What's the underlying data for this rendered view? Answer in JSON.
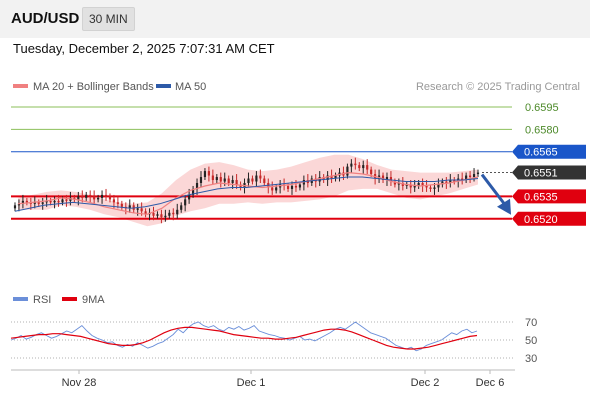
{
  "header": {
    "symbol": "AUD/USD",
    "timeframe": "30 MIN"
  },
  "timestamp": "Tuesday, December 2, 2025 7:07:31 AM CET",
  "legend": {
    "ma20_bb": "MA 20 + Bollinger Bands",
    "ma50": "MA 50",
    "rsi": "RSI",
    "rsi_ma": "9MA"
  },
  "credit": "Research © 2025 Trading Central",
  "colors": {
    "bullish_candle": "#222222",
    "bearish_candle": "#c62828",
    "ma20": "#f08080",
    "bollinger_fill": "#f9c9c9",
    "ma50": "#2d5aa8",
    "resistance_green": "#8bbf5a",
    "resistance_blue": "#1a56c9",
    "support_red": "#e0000f",
    "last_price": "#333333",
    "forecast_arrow": "#2d5aa8",
    "rsi_line": "#6b8fd9",
    "rsi_ma_line": "#e0000f"
  },
  "chart_data": [
    {
      "type": "candlestick",
      "title": "AUD/USD 30 MIN",
      "x_tick_labels": [
        "Nov 28",
        "Dec 1",
        "Dec 2",
        "Dec 6"
      ],
      "ylim": [
        0.6515,
        0.6605
      ],
      "price_levels": [
        {
          "value": 0.6595,
          "label": "0.6595",
          "kind": "resistance"
        },
        {
          "value": 0.658,
          "label": "0.6580",
          "kind": "resistance"
        },
        {
          "value": 0.6565,
          "label": "0.6565",
          "kind": "pivot"
        },
        {
          "value": 0.6551,
          "label": "0.6551",
          "kind": "last"
        },
        {
          "value": 0.6535,
          "label": "0.6535",
          "kind": "support"
        },
        {
          "value": 0.652,
          "label": "0.6520",
          "kind": "support"
        }
      ],
      "close_series": [
        0.6529,
        0.653,
        0.6532,
        0.6531,
        0.653,
        0.6531,
        0.653,
        0.6531,
        0.6532,
        0.6531,
        0.6532,
        0.6531,
        0.6533,
        0.6532,
        0.6534,
        0.6533,
        0.6535,
        0.6534,
        0.6536,
        0.6535,
        0.6533,
        0.6534,
        0.6536,
        0.6535,
        0.6533,
        0.6531,
        0.653,
        0.6528,
        0.6527,
        0.6529,
        0.6526,
        0.6527,
        0.6525,
        0.6523,
        0.6524,
        0.6522,
        0.6523,
        0.6521,
        0.6522,
        0.6524,
        0.6523,
        0.6526,
        0.6529,
        0.6533,
        0.6536,
        0.654,
        0.6544,
        0.6548,
        0.6552,
        0.6549,
        0.6546,
        0.6548,
        0.6545,
        0.6547,
        0.6544,
        0.6546,
        0.6543,
        0.6541,
        0.6544,
        0.6547,
        0.6545,
        0.6549,
        0.6547,
        0.6544,
        0.6541,
        0.6539,
        0.6541,
        0.6543,
        0.6542,
        0.654,
        0.6542,
        0.6541,
        0.6543,
        0.6546,
        0.6544,
        0.6547,
        0.6545,
        0.6548,
        0.6546,
        0.6549,
        0.6547,
        0.6549,
        0.6551,
        0.6549,
        0.6555,
        0.6557,
        0.6556,
        0.6554,
        0.6556,
        0.6553,
        0.655,
        0.6547,
        0.6549,
        0.6546,
        0.6548,
        0.6545,
        0.6543,
        0.6544,
        0.6542,
        0.6543,
        0.6541,
        0.6542,
        0.6544,
        0.6542,
        0.6541,
        0.654,
        0.6541,
        0.6543,
        0.6545,
        0.6544,
        0.6546,
        0.6545,
        0.6547,
        0.6546,
        0.6549,
        0.6548,
        0.655,
        0.6551
      ],
      "ma20": [
        0.653,
        0.6531,
        0.6532,
        0.6534,
        0.6533,
        0.6531,
        0.6528,
        0.6526,
        0.6524,
        0.6523,
        0.6527,
        0.6534,
        0.6539,
        0.6542,
        0.6544,
        0.6543,
        0.6542,
        0.6541,
        0.6542,
        0.6543,
        0.6545,
        0.6547,
        0.6549,
        0.6551,
        0.655,
        0.6548,
        0.6545,
        0.6543,
        0.6542,
        0.6543,
        0.6544,
        0.6546,
        0.6548
      ],
      "ma50": [
        0.6525,
        0.6527,
        0.6529,
        0.653,
        0.6531,
        0.653,
        0.6529,
        0.6528,
        0.6527,
        0.6528,
        0.653,
        0.6533,
        0.6536,
        0.6538,
        0.654,
        0.6541,
        0.6541,
        0.6542,
        0.6543,
        0.6544,
        0.6545,
        0.6546,
        0.6547,
        0.6548,
        0.6548,
        0.6547,
        0.6546,
        0.6545,
        0.6545,
        0.6545,
        0.6546,
        0.6546,
        0.6547
      ],
      "bollinger_upper": [
        0.6534,
        0.6536,
        0.6538,
        0.6539,
        0.6538,
        0.6536,
        0.6533,
        0.6531,
        0.653,
        0.6531,
        0.6537,
        0.6546,
        0.6553,
        0.6557,
        0.6558,
        0.6556,
        0.6553,
        0.6552,
        0.6553,
        0.6555,
        0.6558,
        0.6561,
        0.6563,
        0.6563,
        0.656,
        0.6556,
        0.6553,
        0.6552,
        0.6551,
        0.6551,
        0.6551,
        0.6552,
        0.6553
      ],
      "bollinger_lower": [
        0.6526,
        0.6526,
        0.6526,
        0.6529,
        0.6528,
        0.6526,
        0.6523,
        0.6521,
        0.6518,
        0.6515,
        0.6517,
        0.6522,
        0.6525,
        0.6527,
        0.653,
        0.653,
        0.6531,
        0.653,
        0.6531,
        0.6531,
        0.6532,
        0.6533,
        0.6535,
        0.6539,
        0.654,
        0.654,
        0.6537,
        0.6534,
        0.6533,
        0.6535,
        0.6537,
        0.654,
        0.6543
      ],
      "forecast": {
        "from": 0.6551,
        "to": 0.652,
        "direction": "down"
      }
    },
    {
      "type": "line",
      "title": "RSI",
      "yticks": [
        30,
        50,
        70
      ],
      "ylim": [
        20,
        80
      ],
      "series": [
        {
          "name": "RSI",
          "values": [
            50,
            52,
            55,
            51,
            53,
            56,
            58,
            55,
            52,
            54,
            57,
            60,
            58,
            62,
            66,
            60,
            55,
            52,
            50,
            47,
            48,
            44,
            42,
            45,
            43,
            47,
            44,
            41,
            43,
            46,
            48,
            52,
            56,
            62,
            58,
            64,
            68,
            70,
            66,
            64,
            66,
            62,
            60,
            64,
            62,
            65,
            61,
            63,
            66,
            60,
            58,
            56,
            55,
            53,
            52,
            50,
            52,
            54,
            50,
            51,
            49,
            52,
            55,
            58,
            62,
            64,
            62,
            66,
            70,
            66,
            62,
            58,
            56,
            54,
            52,
            48,
            44,
            42,
            40,
            42,
            38,
            40,
            44,
            46,
            48,
            50,
            54,
            58,
            56,
            60,
            62,
            58,
            60
          ]
        },
        {
          "name": "9MA",
          "values": [
            52,
            53,
            54,
            55,
            56,
            56,
            57,
            57,
            56,
            55,
            54,
            52,
            50,
            48,
            46,
            45,
            44,
            44,
            45,
            47,
            50,
            54,
            58,
            61,
            63,
            64,
            64,
            63,
            62,
            61,
            60,
            58,
            56,
            55,
            54,
            53,
            52,
            52,
            51,
            51,
            52,
            53,
            55,
            57,
            59,
            61,
            62,
            62,
            61,
            59,
            56,
            53,
            50,
            47,
            44,
            42,
            41,
            40,
            40,
            41,
            42,
            44,
            46,
            48,
            50,
            52,
            54,
            55
          ]
        }
      ]
    }
  ]
}
